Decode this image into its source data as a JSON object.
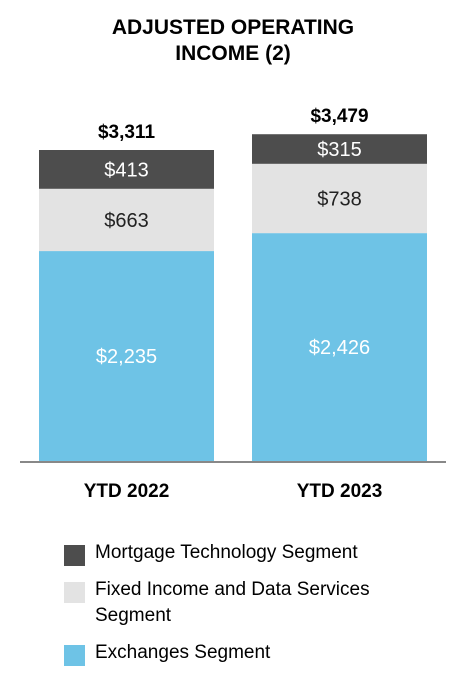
{
  "title_lines": [
    "ADJUSTED OPERATING",
    "INCOME (2)"
  ],
  "chart_data": {
    "type": "bar",
    "stacked": true,
    "categories": [
      "YTD 2022",
      "YTD 2023"
    ],
    "series": [
      {
        "name": "Exchanges Segment",
        "values": [
          2235,
          2426
        ],
        "labels": [
          "$2,235",
          "$2,426"
        ],
        "color": "#6ec3e6",
        "label_color": "#ffffff"
      },
      {
        "name": "Fixed Income and Data Services\n Segment",
        "values": [
          663,
          738
        ],
        "labels": [
          "$663",
          "$738"
        ],
        "color": "#e3e3e3",
        "label_color": "#222222"
      },
      {
        "name": "Mortgage Technology Segment",
        "values": [
          413,
          315
        ],
        "labels": [
          "$413",
          "$315"
        ],
        "color": "#4d4d4d",
        "label_color": "#ffffff"
      }
    ],
    "totals": [
      3311,
      3479
    ],
    "total_labels": [
      "$3,311",
      "$3,479"
    ],
    "legend_order": [
      2,
      1,
      0
    ],
    "axis_color": "#888888"
  }
}
